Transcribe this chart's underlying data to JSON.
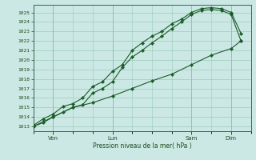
{
  "xlabel": "Pression niveau de la mer( hPa )",
  "bg_color": "#cce8e4",
  "grid_color": "#99ccbb",
  "line_color": "#1a5c28",
  "ylim": [
    1012.5,
    1025.8
  ],
  "yticks": [
    1013,
    1014,
    1015,
    1016,
    1017,
    1018,
    1019,
    1020,
    1021,
    1022,
    1023,
    1024,
    1025
  ],
  "xtick_labels": [
    "Ven",
    "Lun",
    "Sam",
    "Dim"
  ],
  "xtick_positions": [
    14,
    56,
    112,
    140
  ],
  "xlim": [
    0,
    154
  ],
  "line1_x": [
    0,
    7,
    14,
    21,
    28,
    35,
    42,
    49,
    56,
    63,
    70,
    77,
    84,
    91,
    98,
    105,
    112,
    119,
    126,
    133,
    140,
    147
  ],
  "line1_y": [
    1013.0,
    1013.4,
    1014.0,
    1014.5,
    1015.0,
    1015.3,
    1016.5,
    1017.0,
    1017.7,
    1019.2,
    1020.3,
    1021.0,
    1021.8,
    1022.5,
    1023.3,
    1024.0,
    1024.8,
    1025.2,
    1025.3,
    1025.2,
    1024.8,
    1022.0
  ],
  "line2_x": [
    0,
    7,
    14,
    21,
    28,
    35,
    42,
    49,
    56,
    63,
    70,
    77,
    84,
    91,
    98,
    105,
    112,
    119,
    126,
    133,
    140,
    147
  ],
  "line2_y": [
    1013.1,
    1013.8,
    1014.3,
    1015.1,
    1015.4,
    1016.0,
    1017.2,
    1017.7,
    1018.8,
    1019.5,
    1021.0,
    1021.8,
    1022.5,
    1023.0,
    1023.8,
    1024.3,
    1025.0,
    1025.4,
    1025.5,
    1025.4,
    1025.0,
    1022.8
  ],
  "line3_x": [
    0,
    14,
    28,
    42,
    56,
    70,
    84,
    98,
    112,
    126,
    140,
    147
  ],
  "line3_y": [
    1013.0,
    1014.0,
    1015.0,
    1015.5,
    1016.2,
    1017.0,
    1017.8,
    1018.5,
    1019.5,
    1020.5,
    1021.2,
    1022.0
  ]
}
